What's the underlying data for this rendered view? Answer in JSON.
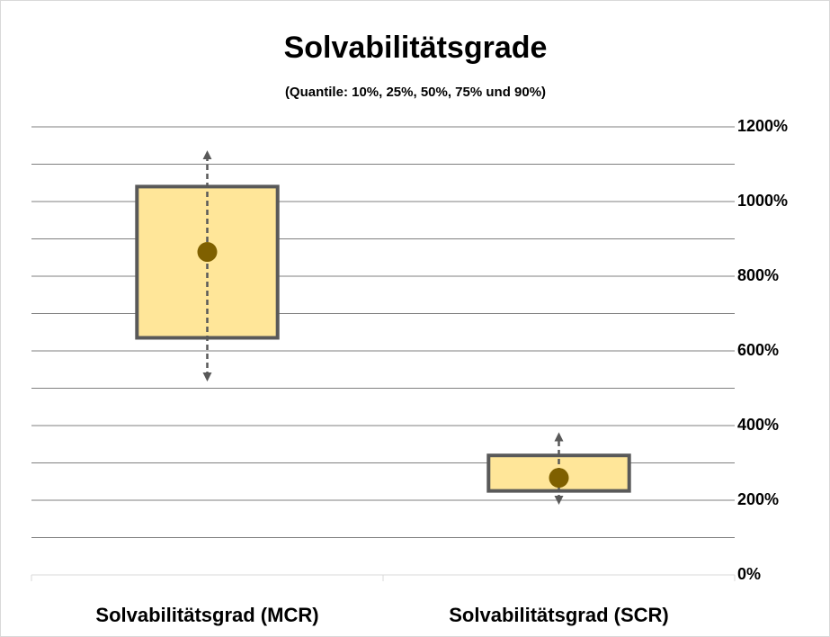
{
  "chart_data": {
    "type": "box",
    "title": "Solvabilitätsgrade",
    "subtitle": "(Quantile: 10%, 25%, 50%, 75% und 90%)",
    "categories": [
      "Solvabilitätsgrad (MCR)",
      "Solvabilitätsgrad (SCR)"
    ],
    "q10": [
      530,
      200
    ],
    "q25": [
      635,
      225
    ],
    "median": [
      865,
      260
    ],
    "q75": [
      1040,
      320
    ],
    "q90": [
      1125,
      370
    ],
    "box_color": "#ffe699",
    "median_color": "#7f6000",
    "ylim": [
      0,
      1200
    ],
    "yticks": [
      {
        "value": 0,
        "label": "0%"
      },
      {
        "value": 200,
        "label": "200%"
      },
      {
        "value": 400,
        "label": "400%"
      },
      {
        "value": 600,
        "label": "600%"
      },
      {
        "value": 800,
        "label": "800%"
      },
      {
        "value": 1000,
        "label": "1000%"
      },
      {
        "value": 1200,
        "label": "1200%"
      }
    ],
    "yminorticks": [
      100,
      300,
      500,
      700,
      900,
      1100
    ],
    "grid": true
  }
}
